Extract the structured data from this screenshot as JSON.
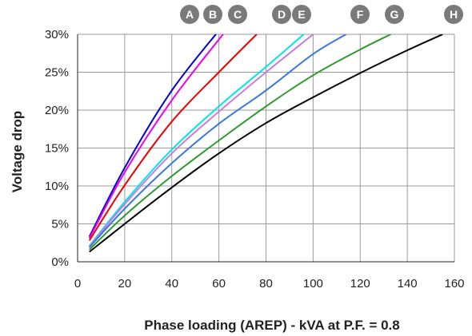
{
  "chart_data": {
    "type": "line",
    "title": "",
    "xlabel": "Phase loading (AREP) - kVA at P.F. = 0.8",
    "ylabel": "Voltage drop",
    "xlim": [
      0,
      160
    ],
    "ylim": [
      0,
      30
    ],
    "xticks": [
      0,
      20,
      40,
      60,
      80,
      100,
      120,
      140,
      160
    ],
    "yticks": [
      0,
      5,
      10,
      15,
      20,
      25,
      30
    ],
    "x_tick_labels": [
      "0",
      "20",
      "40",
      "60",
      "80",
      "100",
      "120",
      "140",
      "160"
    ],
    "y_tick_labels": [
      "0%",
      "5%",
      "10%",
      "15%",
      "20%",
      "25%",
      "30%"
    ],
    "grid": true,
    "legend": "curve labels in grey circles above the plot",
    "series": [
      {
        "name": "A",
        "color": "#0000cc",
        "x": [
          5,
          20,
          40,
          60
        ],
        "y": [
          3.3,
          12.4,
          22.6,
          30.5
        ]
      },
      {
        "name": "B",
        "color": "#ee00ee",
        "x": [
          5,
          20,
          40,
          63
        ],
        "y": [
          3.1,
          11.8,
          21.3,
          30.5
        ]
      },
      {
        "name": "C",
        "color": "#ee0000",
        "x": [
          5,
          20,
          40,
          60,
          77
        ],
        "y": [
          2.8,
          10.1,
          18.5,
          25.0,
          30.3
        ]
      },
      {
        "name": "D",
        "color": "#00e5ee",
        "x": [
          5,
          20,
          40,
          60,
          80,
          96
        ],
        "y": [
          2.1,
          7.9,
          14.8,
          20.5,
          25.7,
          30.0
        ]
      },
      {
        "name": "E",
        "color": "#c77ddf",
        "x": [
          5,
          20,
          40,
          60,
          80,
          100
        ],
        "y": [
          2.0,
          7.6,
          14.3,
          19.8,
          25.0,
          30.0
        ]
      },
      {
        "name": "F",
        "color": "#3a78e0",
        "x": [
          5,
          20,
          40,
          60,
          80,
          100,
          114
        ],
        "y": [
          1.9,
          7.0,
          13.0,
          18.2,
          22.6,
          27.4,
          30.0
        ]
      },
      {
        "name": "G",
        "color": "#2e9a2e",
        "x": [
          5,
          20,
          40,
          60,
          80,
          100,
          120,
          133
        ],
        "y": [
          1.6,
          6.1,
          11.3,
          16.0,
          20.5,
          24.6,
          28.0,
          30.0
        ]
      },
      {
        "name": "H",
        "color": "#000000",
        "x": [
          5,
          20,
          40,
          60,
          80,
          100,
          120,
          140,
          155
        ],
        "y": [
          1.3,
          5.0,
          9.8,
          14.3,
          18.3,
          21.7,
          24.9,
          27.9,
          30.0
        ]
      }
    ],
    "badge_color": "#7a7a7a"
  }
}
